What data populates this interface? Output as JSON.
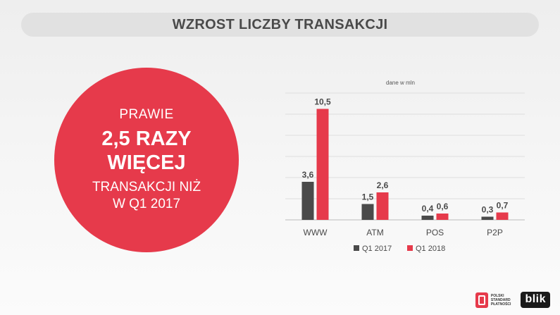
{
  "title": "WZROST LICZBY TRANSAKCJI",
  "callout": {
    "line1": "PRAWIE",
    "line2": "2,5 RAZY",
    "line3": "WIĘCEJ",
    "line4": "TRANSAKCJI NIŻ",
    "line5": "W Q1 2017"
  },
  "chart_data": {
    "type": "bar",
    "unit_note": "dane w mln",
    "categories": [
      "WWW",
      "ATM",
      "POS",
      "P2P"
    ],
    "series": [
      {
        "name": "Q1 2017",
        "color": "#4a4a4a",
        "values": [
          3.6,
          1.5,
          0.4,
          0.3
        ],
        "labels": [
          "3,6",
          "1,5",
          "0,4",
          "0,3"
        ]
      },
      {
        "name": "Q1 2018",
        "color": "#e63a4b",
        "values": [
          10.5,
          2.6,
          0.6,
          0.7
        ],
        "labels": [
          "10,5",
          "2,6",
          "0,6",
          "0,7"
        ]
      }
    ],
    "ylim": [
      0,
      12
    ],
    "grid": true,
    "legend_position": "bottom"
  },
  "logos": {
    "pfs_lines": [
      "POLSKI",
      "STANDARD",
      "PŁATNOŚCI"
    ],
    "blik": "blik"
  }
}
